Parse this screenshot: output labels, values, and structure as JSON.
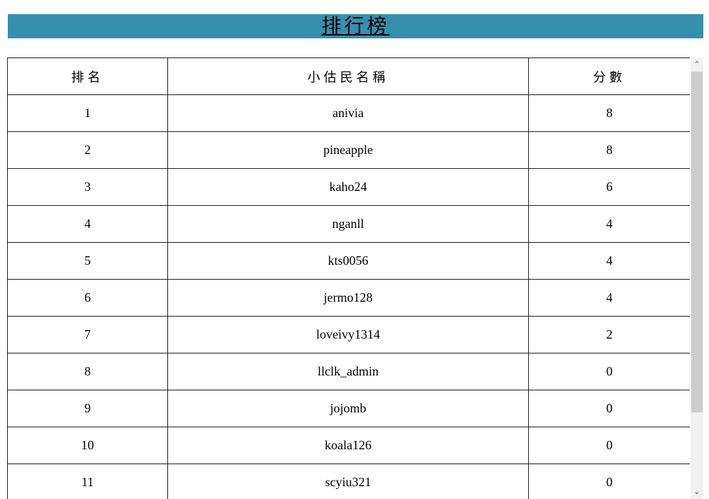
{
  "title": "排行榜",
  "table": {
    "headers": [
      "排名",
      "小估民名稱",
      "分數"
    ],
    "rows": [
      [
        "1",
        "anivia",
        "8"
      ],
      [
        "2",
        "pineapple",
        "8"
      ],
      [
        "3",
        "kaho24",
        "6"
      ],
      [
        "4",
        "nganll",
        "4"
      ],
      [
        "5",
        "kts0056",
        "4"
      ],
      [
        "6",
        "jermo128",
        "4"
      ],
      [
        "7",
        "loveivy1314",
        "2"
      ],
      [
        "8",
        "llclk_admin",
        "0"
      ],
      [
        "9",
        "jojomb",
        "0"
      ],
      [
        "10",
        "koala126",
        "0"
      ],
      [
        "11",
        "scyiu321",
        "0"
      ]
    ]
  },
  "scrollbar": {
    "up_icon": "chevron-up-icon",
    "down_icon": "chevron-down-icon"
  }
}
